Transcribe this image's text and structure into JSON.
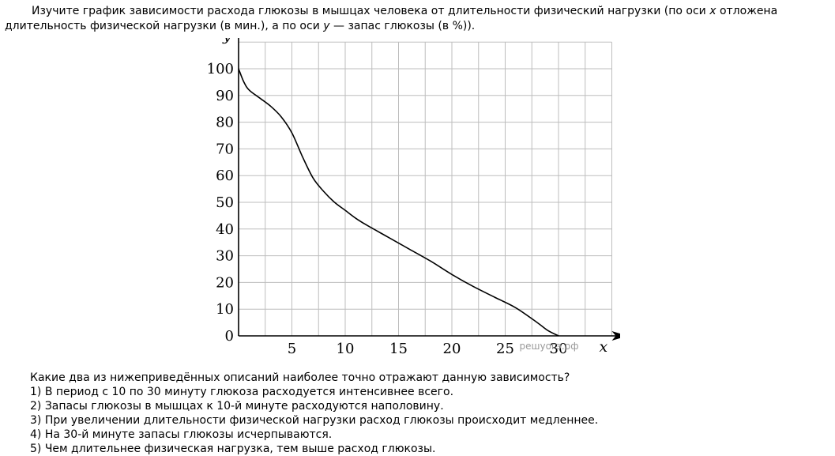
{
  "intro": {
    "part1": "Изучите график зависимости расхода глюкозы в мышцах человека от длительности физический нагрузки (по оси ",
    "var_x": "x",
    "part2": " отложена",
    "part3": "длительность физической нагрузки (в мин.), а по оси ",
    "var_y": "y",
    "part4": " — запас глюкозы (в %))."
  },
  "chart_data": {
    "type": "line",
    "title": "",
    "xlabel": "x",
    "ylabel": "y",
    "xlim": [
      0,
      35
    ],
    "ylim": [
      0,
      100
    ],
    "x_ticks": [
      5,
      10,
      15,
      20,
      25,
      30
    ],
    "y_ticks": [
      0,
      10,
      20,
      30,
      40,
      50,
      60,
      70,
      80,
      90,
      100
    ],
    "grid": true,
    "grid_x_step": 2.5,
    "grid_y_step": 10,
    "watermark": "решуогэ.рф",
    "series": [
      {
        "name": "",
        "x": [
          0,
          0.5,
          1,
          2,
          3,
          4,
          5,
          6,
          7,
          8,
          9,
          10,
          11,
          12,
          14,
          16,
          18,
          20,
          22,
          24,
          26,
          28,
          29,
          30
        ],
        "y": [
          100,
          95,
          92,
          89,
          86,
          82,
          76,
          67,
          59,
          54,
          50,
          47,
          44,
          41.5,
          37,
          32.5,
          28,
          23,
          18.5,
          14.5,
          10.5,
          5,
          2,
          0
        ]
      }
    ]
  },
  "question": {
    "prompt": "Какие два из нижеприведённых описаний наиболее точно отражают данную зависимость?",
    "options": [
      "1) В период с 10 по 30 минуту глюкоза расходуется интенсивнее всего.",
      "2) Запасы глюкозы в мышцах к 10-й минуте расходуются наполовину.",
      "3) При увеличении длительности физической нагрузки расход глюкозы происходит медленнее.",
      "4) На 30-й минуте запасы глюкозы исчерпываются.",
      "5) Чем длительнее физическая нагрузка, тем выше расход глюкозы."
    ]
  }
}
